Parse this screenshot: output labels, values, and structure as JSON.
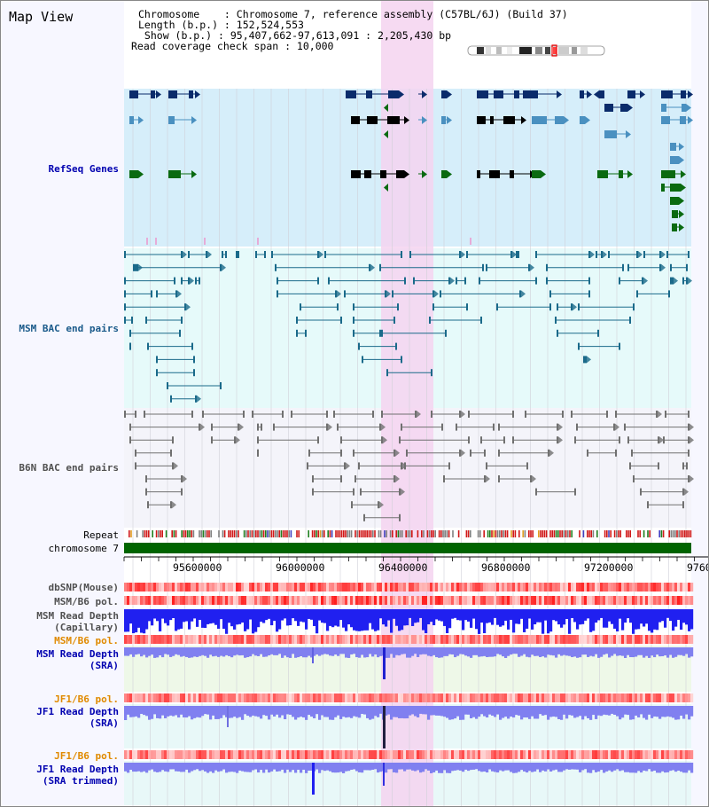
{
  "view": {
    "title": "Map View"
  },
  "info": {
    "chromosome": "Chromosome    : Chromosome 7, reference assembly (C57BL/6J) (Build 37)",
    "length": "Length (b.p.) : 152,524,553",
    "show": " Show (b.p.) : 95,407,662-97,613,091 : 2,205,430 bp",
    "coverage": "Read coverage check span : 10,000"
  },
  "tracks": {
    "refseq": "RefSeq Genes",
    "msm_bac": "MSM BAC end pairs",
    "b6n_bac": "B6N BAC end pairs",
    "repeat": "Repeat",
    "chromosome": "chromosome 7",
    "dbsnp": "dbSNP(Mouse)",
    "msm_b6_pol_1": "MSM/B6 pol.",
    "msm_depth_cap": "MSM Read Depth\n(Capillary)",
    "msm_b6_pol_2": "MSM/B6 pol.",
    "msm_depth_sra": "MSM Read Depth\n(SRA)",
    "jf1_b6_pol_1": "JF1/B6 pol.",
    "jf1_depth_sra": "JF1 Read Depth\n(SRA)",
    "jf1_b6_pol_2": "JF1/B6 pol.",
    "jf1_depth_trim": "JF1 Read Depth\n(SRA trimmed)"
  },
  "axis": {
    "ticks": [
      "95600000",
      "96000000",
      "96400000",
      "96800000",
      "97200000",
      "9760"
    ]
  },
  "colors": {
    "refseq_bg": "#d6eefa",
    "msm_bg": "#e6fafa",
    "b6n_bg": "#f4f4fa",
    "highlight": "#f4d4f0",
    "gene_dark": "#0a2b6b",
    "gene_mid": "#4a90c0",
    "gene_green": "#0a6a10",
    "bac_msm": "#1a6a8a",
    "bac_b6n": "#707070",
    "depth_blue": "#2020f0",
    "depth_light": "#8080f0",
    "pol_red": "#e02020",
    "chrom_green": "#006400"
  }
}
